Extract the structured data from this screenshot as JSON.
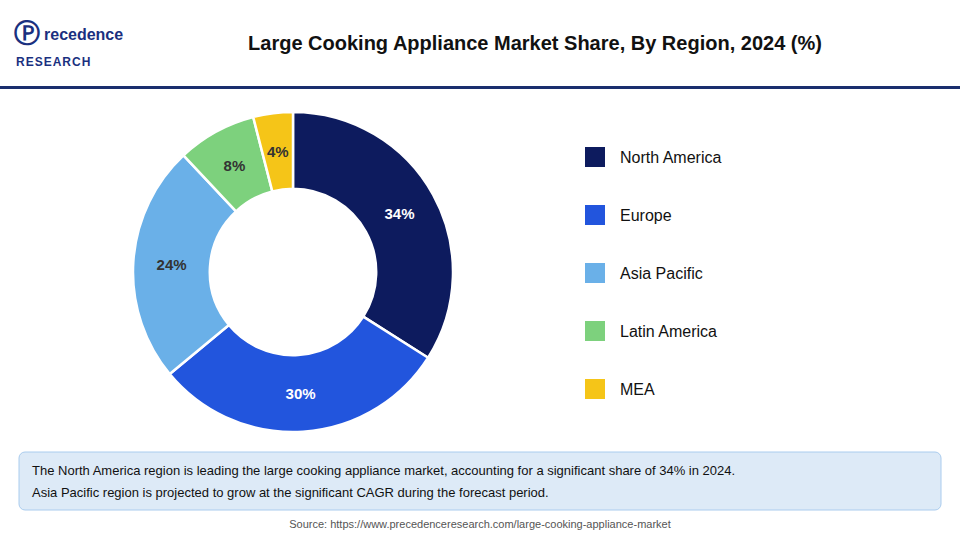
{
  "chart_data": {
    "type": "pie",
    "title": "Large Cooking Appliance Market Share, By Region, 2024 (%)",
    "categories": [
      "North America",
      "Europe",
      "Asia Pacific",
      "Latin America",
      "MEA"
    ],
    "values": [
      34,
      30,
      24,
      8,
      4
    ],
    "value_labels": [
      "34%",
      "30%",
      "24%",
      "8%",
      "4%"
    ],
    "colors": [
      "#0d1b5e",
      "#2255dd",
      "#6ab0e8",
      "#7dd17d",
      "#f5c518"
    ],
    "data_labels": true,
    "legend": "right",
    "annotations": [
      "Ⓟ",
      "recedence",
      "RESEARCH",
      "The North America region is leading the large cooking appliance market, accounting for a significant share of 34% in 2024.",
      "Asia Pacific region is projected to grow at the significant CAGR during the forecast period.",
      "Source: https://www.precedenceresearch.com/large-cooking-appliance-market"
    ]
  }
}
